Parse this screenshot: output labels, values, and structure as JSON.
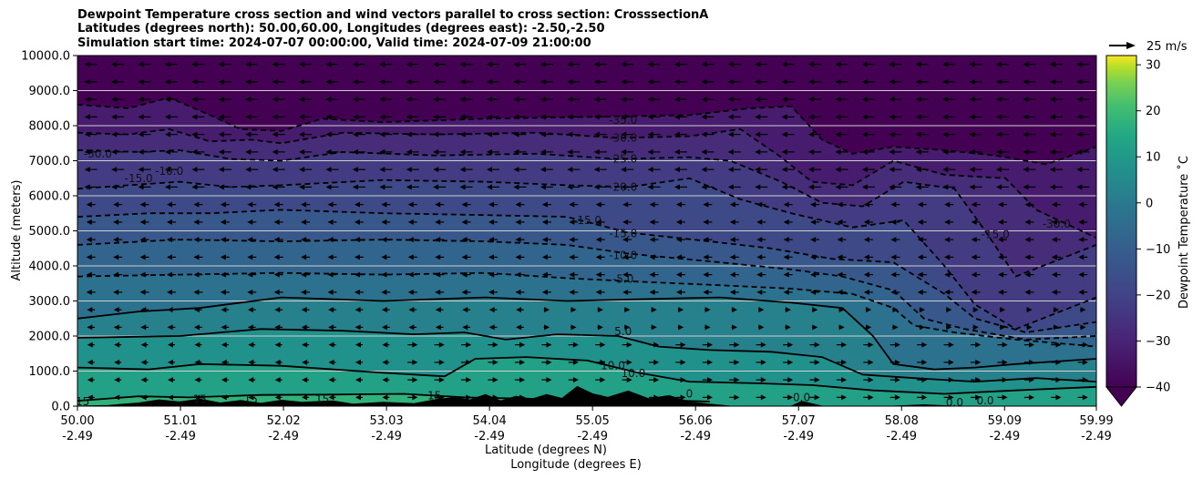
{
  "title": {
    "line1": "Dewpoint Temperature cross section and wind vectors parallel to cross section: CrosssectionA",
    "line2": "Latitudes (degrees north): 50.00,60.00, Longitudes (degrees east): -2.50,-2.50",
    "line3": "Simulation start time: 2024-07-07 00:00:00, Valid time: 2024-07-09 21:00:00"
  },
  "chart_data": {
    "type": "contour",
    "xlabel": "Latitude (degrees N)",
    "xlabel2": "Longitude (degrees E)",
    "ylabel": "Altitude (meters)",
    "ylim": [
      0,
      10000
    ],
    "xlim": [
      50.0,
      59.99
    ],
    "x_ticks": [
      {
        "lat": "50.00",
        "lon": "-2.49",
        "v": 50.0
      },
      {
        "lat": "51.01",
        "lon": "-2.49",
        "v": 51.01
      },
      {
        "lat": "52.02",
        "lon": "-2.49",
        "v": 52.02
      },
      {
        "lat": "53.03",
        "lon": "-2.49",
        "v": 53.03
      },
      {
        "lat": "54.04",
        "lon": "-2.49",
        "v": 54.04
      },
      {
        "lat": "55.05",
        "lon": "-2.49",
        "v": 55.05
      },
      {
        "lat": "56.06",
        "lon": "-2.49",
        "v": 56.06
      },
      {
        "lat": "57.07",
        "lon": "-2.49",
        "v": 57.07
      },
      {
        "lat": "58.08",
        "lon": "-2.49",
        "v": 58.08
      },
      {
        "lat": "59.09",
        "lon": "-2.49",
        "v": 59.09
      },
      {
        "lat": "59.99",
        "lon": "-2.49",
        "v": 59.99
      }
    ],
    "y_ticks": [
      {
        "label": "0.0",
        "v": 0
      },
      {
        "label": "1000.0",
        "v": 1000
      },
      {
        "label": "2000.0",
        "v": 2000
      },
      {
        "label": "3000.0",
        "v": 3000
      },
      {
        "label": "4000.0",
        "v": 4000
      },
      {
        "label": "5000.0",
        "v": 5000
      },
      {
        "label": "6000.0",
        "v": 6000
      },
      {
        "label": "7000.0",
        "v": 7000
      },
      {
        "label": "8000.0",
        "v": 8000
      },
      {
        "label": "9000.0",
        "v": 9000
      },
      {
        "label": "10000.0",
        "v": 10000
      }
    ],
    "colorbar": {
      "label": "Dewpoint Temperature ˚C",
      "min": -40,
      "max": 32,
      "extend": "min",
      "ticks": [
        {
          "label": "30",
          "v": 30
        },
        {
          "label": "20",
          "v": 20
        },
        {
          "label": "10",
          "v": 10
        },
        {
          "label": "0",
          "v": 0
        },
        {
          "label": "−10",
          "v": -10
        },
        {
          "label": "−20",
          "v": -20
        },
        {
          "label": "−30",
          "v": -30
        },
        {
          "label": "−40",
          "v": -40
        }
      ]
    },
    "quiver_key": {
      "label": "25 m/s",
      "speed": 25
    },
    "contour_labels": [
      {
        "text": "-35.0",
        "x": 55.35,
        "y": 8150
      },
      {
        "text": "-30.0",
        "x": 55.35,
        "y": 7650
      },
      {
        "text": "-25.0",
        "x": 55.35,
        "y": 7050
      },
      {
        "text": "-20.0",
        "x": 55.35,
        "y": 6250
      },
      {
        "text": "-15.0",
        "x": 55.35,
        "y": 4920
      },
      {
        "text": "-10.0",
        "x": 55.35,
        "y": 4300
      },
      {
        "text": "-5.0",
        "x": 55.35,
        "y": 3620
      },
      {
        "text": "5.0",
        "x": 55.35,
        "y": 2130
      },
      {
        "text": "10.0",
        "x": 55.25,
        "y": 1150
      },
      {
        "text": "10.0",
        "x": 55.45,
        "y": 930
      },
      {
        "text": "-30.0",
        "x": 50.2,
        "y": 7200
      },
      {
        "text": "-15.0",
        "x": 50.6,
        "y": 6500
      },
      {
        "text": "-10.0",
        "x": 50.9,
        "y": 6700
      },
      {
        "text": "-15.0",
        "x": 55.0,
        "y": 5300
      },
      {
        "text": "-15.0",
        "x": 59.0,
        "y": 4900
      },
      {
        "text": "-30.0",
        "x": 59.6,
        "y": 5200
      },
      {
        "text": "15",
        "x": 51.2,
        "y": 200
      },
      {
        "text": "15",
        "x": 51.7,
        "y": 200
      },
      {
        "text": "15",
        "x": 52.4,
        "y": 200
      },
      {
        "text": "15",
        "x": 53.5,
        "y": 300
      },
      {
        "text": "0",
        "x": 56.0,
        "y": 350
      },
      {
        "text": "0.0",
        "x": 57.1,
        "y": 250
      },
      {
        "text": "0.0",
        "x": 58.6,
        "y": 100
      },
      {
        "text": "0.0",
        "x": 58.9,
        "y": 150
      },
      {
        "text": "15",
        "x": 50.05,
        "y": 130
      }
    ],
    "contours": [
      {
        "level": -35,
        "dashed": true,
        "points": [
          [
            50.0,
            8600
          ],
          [
            50.5,
            8500
          ],
          [
            50.9,
            8800
          ],
          [
            51.3,
            8300
          ],
          [
            51.6,
            7900
          ],
          [
            52.0,
            7850
          ],
          [
            52.4,
            8200
          ],
          [
            53.0,
            8100
          ],
          [
            54.0,
            8200
          ],
          [
            55.0,
            8250
          ],
          [
            56.0,
            8300
          ],
          [
            56.6,
            8500
          ],
          [
            57.0,
            8550
          ],
          [
            57.3,
            7600
          ],
          [
            57.6,
            7200
          ],
          [
            58.0,
            7400
          ],
          [
            58.5,
            7300
          ],
          [
            59.0,
            7150
          ],
          [
            59.5,
            6900
          ],
          [
            59.99,
            7400
          ]
        ]
      },
      {
        "level": -30,
        "dashed": true,
        "points": [
          [
            50.0,
            7800
          ],
          [
            50.5,
            7750
          ],
          [
            50.9,
            7900
          ],
          [
            51.3,
            7550
          ],
          [
            51.7,
            7600
          ],
          [
            52.0,
            7500
          ],
          [
            52.6,
            7800
          ],
          [
            53.5,
            7750
          ],
          [
            54.5,
            7800
          ],
          [
            55.3,
            7650
          ],
          [
            56.0,
            7700
          ],
          [
            56.5,
            7900
          ],
          [
            56.9,
            7100
          ],
          [
            57.2,
            6400
          ],
          [
            57.6,
            6300
          ],
          [
            58.0,
            7000
          ],
          [
            58.5,
            6600
          ],
          [
            59.1,
            6500
          ],
          [
            59.4,
            5600
          ],
          [
            59.99,
            4800
          ]
        ]
      },
      {
        "level": -25,
        "dashed": true,
        "points": [
          [
            50.0,
            7300
          ],
          [
            50.6,
            7250
          ],
          [
            51.0,
            7300
          ],
          [
            51.5,
            7050
          ],
          [
            52.0,
            7000
          ],
          [
            52.6,
            7250
          ],
          [
            53.5,
            7150
          ],
          [
            54.5,
            7200
          ],
          [
            55.3,
            7050
          ],
          [
            56.0,
            7100
          ],
          [
            56.4,
            7000
          ],
          [
            56.9,
            6400
          ],
          [
            57.3,
            5800
          ],
          [
            57.7,
            5700
          ],
          [
            58.1,
            6400
          ],
          [
            58.6,
            6200
          ],
          [
            58.9,
            5000
          ],
          [
            59.2,
            3700
          ],
          [
            59.99,
            4600
          ]
        ]
      },
      {
        "level": -20,
        "dashed": true,
        "points": [
          [
            50.0,
            6200
          ],
          [
            50.5,
            6300
          ],
          [
            51.0,
            6400
          ],
          [
            51.5,
            6250
          ],
          [
            52.0,
            6300
          ],
          [
            53.0,
            6450
          ],
          [
            54.0,
            6400
          ],
          [
            54.8,
            6300
          ],
          [
            55.4,
            6250
          ],
          [
            56.0,
            6500
          ],
          [
            56.5,
            5900
          ],
          [
            57.0,
            5500
          ],
          [
            57.6,
            5100
          ],
          [
            58.1,
            5300
          ],
          [
            58.5,
            4000
          ],
          [
            58.8,
            2900
          ],
          [
            59.2,
            2200
          ],
          [
            59.99,
            3100
          ]
        ]
      },
      {
        "level": -15,
        "dashed": true,
        "points": [
          [
            50.0,
            5400
          ],
          [
            50.7,
            5500
          ],
          [
            51.3,
            5500
          ],
          [
            52.0,
            5600
          ],
          [
            53.0,
            5500
          ],
          [
            54.0,
            5450
          ],
          [
            54.8,
            5400
          ],
          [
            55.4,
            4950
          ],
          [
            56.2,
            4700
          ],
          [
            56.8,
            4500
          ],
          [
            57.4,
            4200
          ],
          [
            58.0,
            4100
          ],
          [
            58.5,
            3200
          ],
          [
            58.8,
            2500
          ],
          [
            59.3,
            2100
          ],
          [
            59.99,
            2400
          ]
        ]
      },
      {
        "level": -10,
        "dashed": true,
        "points": [
          [
            50.0,
            4600
          ],
          [
            51.0,
            4750
          ],
          [
            52.0,
            4700
          ],
          [
            53.0,
            4750
          ],
          [
            54.0,
            4700
          ],
          [
            54.8,
            4600
          ],
          [
            55.4,
            4350
          ],
          [
            56.3,
            4100
          ],
          [
            57.0,
            3900
          ],
          [
            57.5,
            3700
          ],
          [
            58.0,
            3300
          ],
          [
            58.3,
            2500
          ],
          [
            58.7,
            2200
          ],
          [
            59.3,
            1900
          ],
          [
            59.99,
            2000
          ]
        ]
      },
      {
        "level": -5,
        "dashed": true,
        "points": [
          [
            50.0,
            3700
          ],
          [
            51.0,
            3750
          ],
          [
            52.0,
            3800
          ],
          [
            53.0,
            3750
          ],
          [
            54.0,
            3800
          ],
          [
            54.8,
            3650
          ],
          [
            55.5,
            3550
          ],
          [
            56.3,
            3450
          ],
          [
            57.0,
            3350
          ],
          [
            57.6,
            3200
          ],
          [
            58.0,
            2800
          ],
          [
            58.2,
            2300
          ],
          [
            58.6,
            2100
          ],
          [
            59.2,
            1900
          ],
          [
            59.99,
            1700
          ]
        ]
      },
      {
        "level": 0,
        "dashed": false,
        "points": [
          [
            50.0,
            2500
          ],
          [
            50.6,
            2700
          ],
          [
            51.2,
            2800
          ],
          [
            52.0,
            3100
          ],
          [
            53.0,
            3000
          ],
          [
            54.0,
            3100
          ],
          [
            54.8,
            3000
          ],
          [
            55.5,
            3050
          ],
          [
            56.3,
            3100
          ],
          [
            57.0,
            2950
          ],
          [
            57.5,
            2800
          ],
          [
            57.8,
            2000
          ],
          [
            58.0,
            1200
          ],
          [
            58.4,
            1050
          ],
          [
            58.8,
            1100
          ],
          [
            59.2,
            1200
          ],
          [
            59.99,
            1350
          ]
        ]
      },
      {
        "level": 5,
        "dashed": false,
        "points": [
          [
            50.0,
            1950
          ],
          [
            51.0,
            2000
          ],
          [
            51.8,
            2200
          ],
          [
            52.6,
            2150
          ],
          [
            53.3,
            2050
          ],
          [
            53.8,
            2100
          ],
          [
            54.2,
            1900
          ],
          [
            54.7,
            2050
          ],
          [
            55.3,
            2000
          ],
          [
            55.7,
            1700
          ],
          [
            56.2,
            1600
          ],
          [
            56.8,
            1550
          ],
          [
            57.3,
            1400
          ],
          [
            57.7,
            900
          ],
          [
            58.2,
            800
          ],
          [
            58.8,
            700
          ],
          [
            59.4,
            800
          ],
          [
            59.99,
            700
          ]
        ]
      },
      {
        "level": 10,
        "dashed": false,
        "points": [
          [
            50.0,
            1100
          ],
          [
            50.7,
            1050
          ],
          [
            51.2,
            1200
          ],
          [
            52.0,
            1150
          ],
          [
            53.0,
            950
          ],
          [
            53.6,
            850
          ],
          [
            53.9,
            1350
          ],
          [
            54.4,
            1400
          ],
          [
            55.0,
            1300
          ],
          [
            55.5,
            950
          ],
          [
            56.0,
            700
          ],
          [
            56.7,
            650
          ],
          [
            57.2,
            600
          ],
          [
            57.8,
            450
          ],
          [
            58.5,
            350
          ],
          [
            59.2,
            450
          ],
          [
            59.99,
            550
          ]
        ]
      },
      {
        "level": 15,
        "dashed": false,
        "points": [
          [
            50.0,
            150
          ],
          [
            50.6,
            280
          ],
          [
            51.1,
            250
          ],
          [
            51.8,
            320
          ],
          [
            52.5,
            330
          ],
          [
            53.2,
            350
          ],
          [
            53.8,
            250
          ],
          [
            54.6,
            200
          ],
          [
            55.3,
            220
          ],
          [
            55.8,
            170
          ],
          [
            56.2,
            130
          ]
        ]
      }
    ],
    "terrain": [
      [
        50.0,
        0
      ],
      [
        50.3,
        20
      ],
      [
        50.6,
        90
      ],
      [
        50.8,
        180
      ],
      [
        51.0,
        120
      ],
      [
        51.2,
        200
      ],
      [
        51.4,
        90
      ],
      [
        51.6,
        160
      ],
      [
        51.8,
        80
      ],
      [
        52.0,
        170
      ],
      [
        52.2,
        110
      ],
      [
        52.5,
        150
      ],
      [
        52.7,
        60
      ],
      [
        53.0,
        110
      ],
      [
        53.3,
        70
      ],
      [
        53.5,
        180
      ],
      [
        53.7,
        250
      ],
      [
        53.85,
        180
      ],
      [
        54.0,
        330
      ],
      [
        54.15,
        150
      ],
      [
        54.3,
        280
      ],
      [
        54.45,
        200
      ],
      [
        54.6,
        330
      ],
      [
        54.75,
        220
      ],
      [
        54.9,
        560
      ],
      [
        55.05,
        350
      ],
      [
        55.2,
        250
      ],
      [
        55.4,
        430
      ],
      [
        55.6,
        210
      ],
      [
        55.8,
        300
      ],
      [
        56.0,
        120
      ],
      [
        56.2,
        60
      ],
      [
        56.4,
        0
      ],
      [
        57.0,
        0
      ],
      [
        57.1,
        140
      ],
      [
        57.3,
        0
      ],
      [
        58.0,
        0
      ],
      [
        58.3,
        40
      ],
      [
        58.6,
        0
      ],
      [
        59.99,
        0
      ]
    ]
  }
}
